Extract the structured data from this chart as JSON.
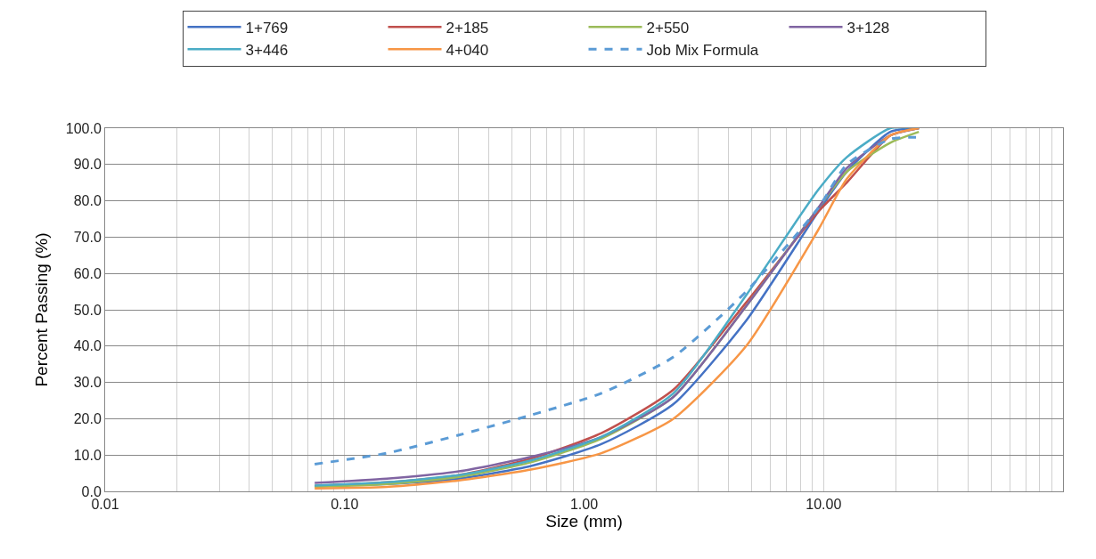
{
  "chart_data": {
    "type": "line",
    "xlabel": "Size (mm)",
    "ylabel": "Percent Passing (%)",
    "log": "x",
    "x": [
      0.075,
      0.15,
      0.3,
      0.6,
      1.18,
      2.36,
      4.75,
      9.5,
      12.5,
      19,
      25
    ],
    "series": [
      {
        "name": "1+769",
        "color": "#4472c4",
        "values": [
          1.5,
          2.0,
          3.5,
          7,
          13,
          24,
          47,
          77,
          88,
          99,
          100
        ]
      },
      {
        "name": "2+185",
        "color": "#c0504d",
        "values": [
          1.5,
          2.5,
          4.5,
          9,
          16,
          28,
          52,
          77,
          85,
          98,
          100
        ]
      },
      {
        "name": "2+550",
        "color": "#9bbb59",
        "values": [
          1.2,
          2.0,
          4,
          8,
          14.5,
          26,
          51,
          78,
          88,
          96,
          99
        ]
      },
      {
        "name": "3+128",
        "color": "#8064a2",
        "values": [
          2.3,
          3.5,
          5.5,
          9.5,
          15,
          26,
          51,
          78,
          89,
          98,
          100
        ]
      },
      {
        "name": "3+446",
        "color": "#4bacc6",
        "values": [
          1.6,
          2.5,
          4.5,
          8.5,
          15,
          27,
          54,
          83,
          92,
          100,
          100
        ]
      },
      {
        "name": "4+040",
        "color": "#f79646",
        "values": [
          0.8,
          1.2,
          3,
          6,
          10.5,
          20,
          40,
          72,
          86,
          98,
          100
        ]
      },
      {
        "name": "Job Mix Formula",
        "color": "#5b9bd5",
        "line_style": "dashed",
        "values": [
          7.5,
          10.5,
          15.5,
          21,
          27,
          37,
          55,
          78,
          90,
          97,
          97.5
        ]
      }
    ],
    "xlim": [
      0.01,
      100
    ],
    "xticks": [
      {
        "value": 0.01,
        "label": "0.01"
      },
      {
        "value": 0.02,
        "label": null
      },
      {
        "value": 0.03,
        "label": null
      },
      {
        "value": 0.04,
        "label": null
      },
      {
        "value": 0.05,
        "label": null
      },
      {
        "value": 0.06,
        "label": null
      },
      {
        "value": 0.07,
        "label": null
      },
      {
        "value": 0.08,
        "label": null
      },
      {
        "value": 0.09,
        "label": null
      },
      {
        "value": 0.1,
        "label": "0.10"
      },
      {
        "value": 0.2,
        "label": null
      },
      {
        "value": 0.3,
        "label": null
      },
      {
        "value": 0.4,
        "label": null
      },
      {
        "value": 0.5,
        "label": null
      },
      {
        "value": 0.6,
        "label": null
      },
      {
        "value": 0.7,
        "label": null
      },
      {
        "value": 0.8,
        "label": null
      },
      {
        "value": 0.9,
        "label": null
      },
      {
        "value": 1,
        "label": "1.00"
      },
      {
        "value": 2,
        "label": null
      },
      {
        "value": 3,
        "label": null
      },
      {
        "value": 4,
        "label": null
      },
      {
        "value": 5,
        "label": null
      },
      {
        "value": 6,
        "label": null
      },
      {
        "value": 7,
        "label": null
      },
      {
        "value": 8,
        "label": null
      },
      {
        "value": 9,
        "label": null
      },
      {
        "value": 10,
        "label": "10.00"
      },
      {
        "value": 20,
        "label": null
      },
      {
        "value": 30,
        "label": null
      },
      {
        "value": 40,
        "label": null
      },
      {
        "value": 50,
        "label": null
      },
      {
        "value": 60,
        "label": null
      },
      {
        "value": 70,
        "label": null
      },
      {
        "value": 80,
        "label": null
      },
      {
        "value": 90,
        "label": null
      }
    ],
    "ylim": [
      0,
      100
    ],
    "yticks": [
      {
        "value": 0,
        "label": "0.0"
      },
      {
        "value": 10,
        "label": "10.0"
      },
      {
        "value": 20,
        "label": "20.0"
      },
      {
        "value": 30,
        "label": "30.0"
      },
      {
        "value": 40,
        "label": "40.0"
      },
      {
        "value": 50,
        "label": "50.0"
      },
      {
        "value": 60,
        "label": "60.0"
      },
      {
        "value": 70,
        "label": "70.0"
      },
      {
        "value": 80,
        "label": "80.0"
      },
      {
        "value": 90,
        "label": "90.0"
      },
      {
        "value": 100,
        "label": "100.0"
      }
    ],
    "grid": true,
    "legend": "top",
    "marker": "none",
    "line_style": "solid"
  }
}
